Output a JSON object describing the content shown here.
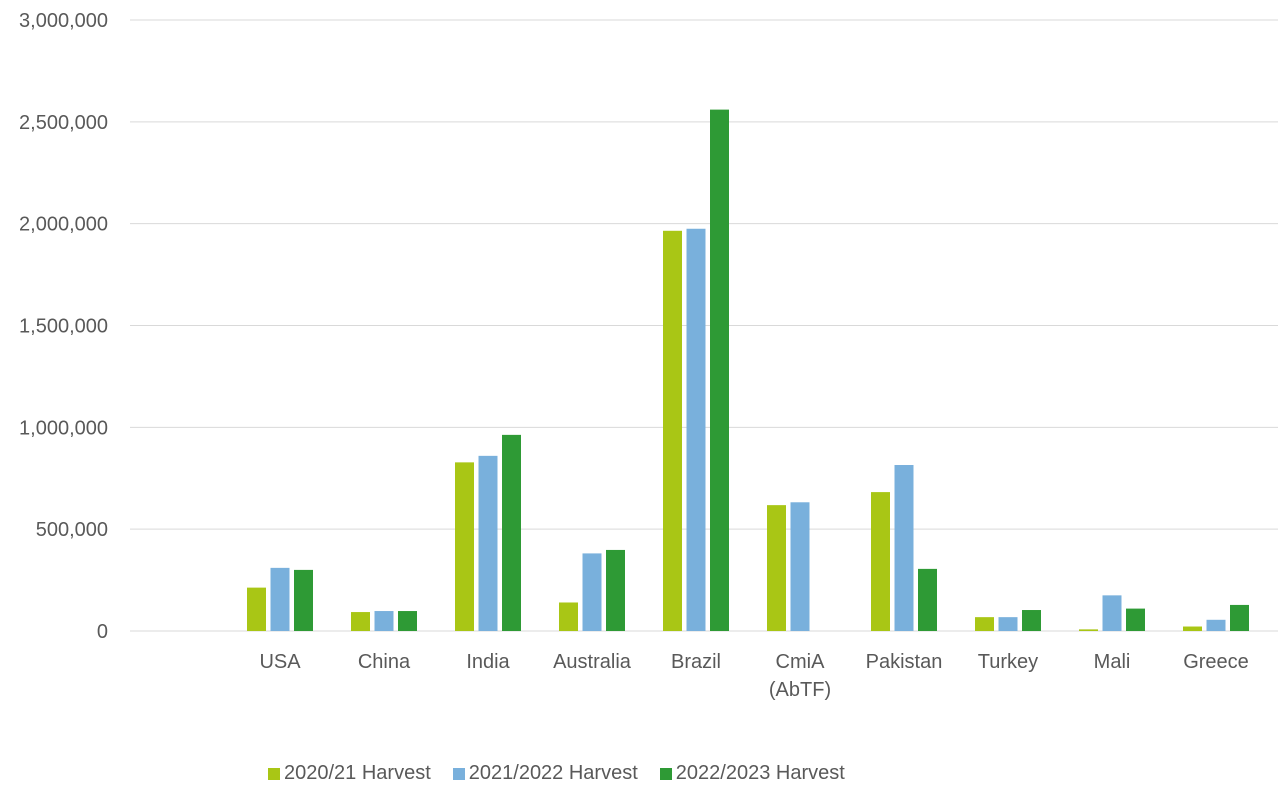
{
  "chart_data": {
    "type": "bar",
    "categories": [
      "USA",
      "China",
      "India",
      "Australia",
      "Brazil",
      "CmiA (AbTF)",
      "Pakistan",
      "Turkey",
      "Mali",
      "Greece"
    ],
    "category_lines": [
      [
        "USA"
      ],
      [
        "China"
      ],
      [
        "India"
      ],
      [
        "Australia"
      ],
      [
        "Brazil"
      ],
      [
        "CmiA",
        "(AbTF)"
      ],
      [
        "Pakistan"
      ],
      [
        "Turkey"
      ],
      [
        "Mali"
      ],
      [
        "Greece"
      ]
    ],
    "series": [
      {
        "name": "2020/21 Harvest",
        "color": "#a9c615",
        "values": [
          213000,
          93000,
          828000,
          140000,
          1965000,
          618000,
          682000,
          68000,
          8000,
          22000
        ]
      },
      {
        "name": "2021/2022 Harvest",
        "color": "#79b0dc",
        "values": [
          310000,
          98000,
          860000,
          381000,
          1975000,
          632000,
          815000,
          68000,
          175000,
          55000
        ]
      },
      {
        "name": "2022/2023 Harvest",
        "color": "#2e9a35",
        "values": [
          300000,
          98000,
          963000,
          398000,
          2560000,
          0,
          305000,
          103000,
          110000,
          128000
        ]
      }
    ],
    "y_ticks": [
      "0",
      "500,000",
      "1,000,000",
      "1,500,000",
      "2,000,000",
      "2,500,000",
      "3,000,000"
    ],
    "ylim": [
      0,
      3000000
    ],
    "grid": true,
    "legend_position": "bottom",
    "title": "",
    "xlabel": "",
    "ylabel": ""
  }
}
